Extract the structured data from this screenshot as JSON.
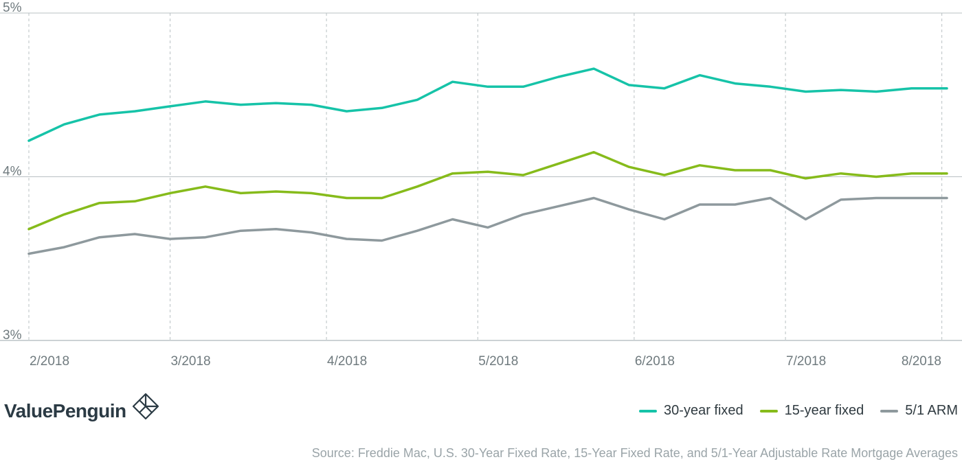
{
  "chart_data": {
    "type": "line",
    "x": [
      "2018-02-01",
      "2018-02-08",
      "2018-02-15",
      "2018-02-22",
      "2018-03-01",
      "2018-03-08",
      "2018-03-15",
      "2018-03-22",
      "2018-03-29",
      "2018-04-05",
      "2018-04-12",
      "2018-04-19",
      "2018-04-26",
      "2018-05-03",
      "2018-05-10",
      "2018-05-17",
      "2018-05-24",
      "2018-05-31",
      "2018-06-07",
      "2018-06-14",
      "2018-06-21",
      "2018-06-28",
      "2018-07-05",
      "2018-07-12",
      "2018-07-19",
      "2018-07-26",
      "2018-08-02"
    ],
    "series": [
      {
        "name": "30-year fixed",
        "color": "#16c3a8",
        "values": [
          4.22,
          4.32,
          4.38,
          4.4,
          4.43,
          4.46,
          4.44,
          4.45,
          4.44,
          4.4,
          4.42,
          4.47,
          4.58,
          4.55,
          4.55,
          4.61,
          4.66,
          4.56,
          4.54,
          4.62,
          4.57,
          4.55,
          4.52,
          4.53,
          4.52,
          4.54,
          4.54
        ]
      },
      {
        "name": "15-year fixed",
        "color": "#86bb1b",
        "values": [
          3.68,
          3.77,
          3.84,
          3.85,
          3.9,
          3.94,
          3.9,
          3.91,
          3.9,
          3.87,
          3.87,
          3.94,
          4.02,
          4.03,
          4.01,
          4.08,
          4.15,
          4.06,
          4.01,
          4.07,
          4.04,
          4.04,
          3.99,
          4.02,
          4.0,
          4.02,
          4.02
        ]
      },
      {
        "name": "5/1 ARM",
        "color": "#8e999d",
        "values": [
          3.53,
          3.57,
          3.63,
          3.65,
          3.62,
          3.63,
          3.67,
          3.68,
          3.66,
          3.62,
          3.61,
          3.67,
          3.74,
          3.69,
          3.77,
          3.82,
          3.87,
          3.8,
          3.74,
          3.83,
          3.83,
          3.87,
          3.74,
          3.86,
          3.87,
          3.87,
          3.87
        ]
      }
    ],
    "x_ticks": [
      {
        "date": "2018-02-01",
        "label": "2/2018"
      },
      {
        "date": "2018-03-01",
        "label": "3/2018"
      },
      {
        "date": "2018-04-01",
        "label": "4/2018"
      },
      {
        "date": "2018-05-01",
        "label": "5/2018"
      },
      {
        "date": "2018-06-01",
        "label": "6/2018"
      },
      {
        "date": "2018-07-01",
        "label": "7/2018"
      },
      {
        "date": "2018-08-01",
        "label": "8/2018"
      }
    ],
    "y_ticks": [
      {
        "value": 3,
        "label": "3%"
      },
      {
        "value": 4,
        "label": "4%"
      },
      {
        "value": 5,
        "label": "5%"
      }
    ],
    "xlim": [
      "2018-02-01",
      "2018-08-02"
    ],
    "ylim": [
      3,
      5
    ],
    "grid": {
      "horizontal": true,
      "vertical_dashed": true
    },
    "legend_position": "bottom-right",
    "axis_color": "#9aa4a8",
    "grid_color": "#b9c0c3"
  },
  "branding": {
    "logo_text": "ValuePenguin",
    "logo_color": "#2b3a44"
  },
  "source_text": "Source: Freddie Mac, U.S. 30-Year Fixed Rate, 15-Year Fixed Rate, and 5/1-Year Adjustable Rate Mortgage Averages"
}
